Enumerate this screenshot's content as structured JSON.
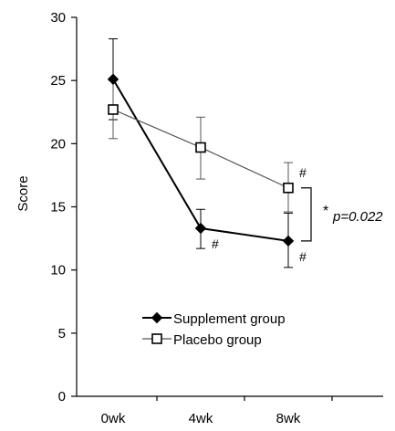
{
  "chart_data": {
    "type": "line",
    "categories": [
      "0wk",
      "4wk",
      "8wk"
    ],
    "ylabel": "Score",
    "xlabel": "",
    "title": "",
    "ylim": [
      0,
      30
    ],
    "yticks": [
      0,
      5,
      10,
      15,
      20,
      25,
      30
    ],
    "grid": false,
    "legend_position": "center",
    "series": [
      {
        "name": "Supplement group",
        "marker": "filled-diamond",
        "color": "#000000",
        "values": [
          25.1,
          13.3,
          12.3
        ],
        "err_upper": [
          28.3,
          14.8,
          14.5
        ],
        "err_lower": [
          21.9,
          11.7,
          10.2
        ]
      },
      {
        "name": "Placebo group",
        "marker": "open-square",
        "color": "#555555",
        "values": [
          22.7,
          19.7,
          16.5
        ],
        "err_upper": [
          25.0,
          22.1,
          18.5
        ],
        "err_lower": [
          20.4,
          17.2,
          14.6
        ]
      }
    ],
    "annotations": [
      {
        "text": "#",
        "series": 0,
        "index": 1,
        "position": "below-right"
      },
      {
        "text": "#",
        "series": 0,
        "index": 2,
        "position": "below-right"
      },
      {
        "text": "#",
        "series": 1,
        "index": 2,
        "position": "above-right"
      }
    ],
    "significance": {
      "star": "*",
      "text": "p=0.022",
      "between_series": [
        0,
        1
      ],
      "index": 2
    }
  }
}
